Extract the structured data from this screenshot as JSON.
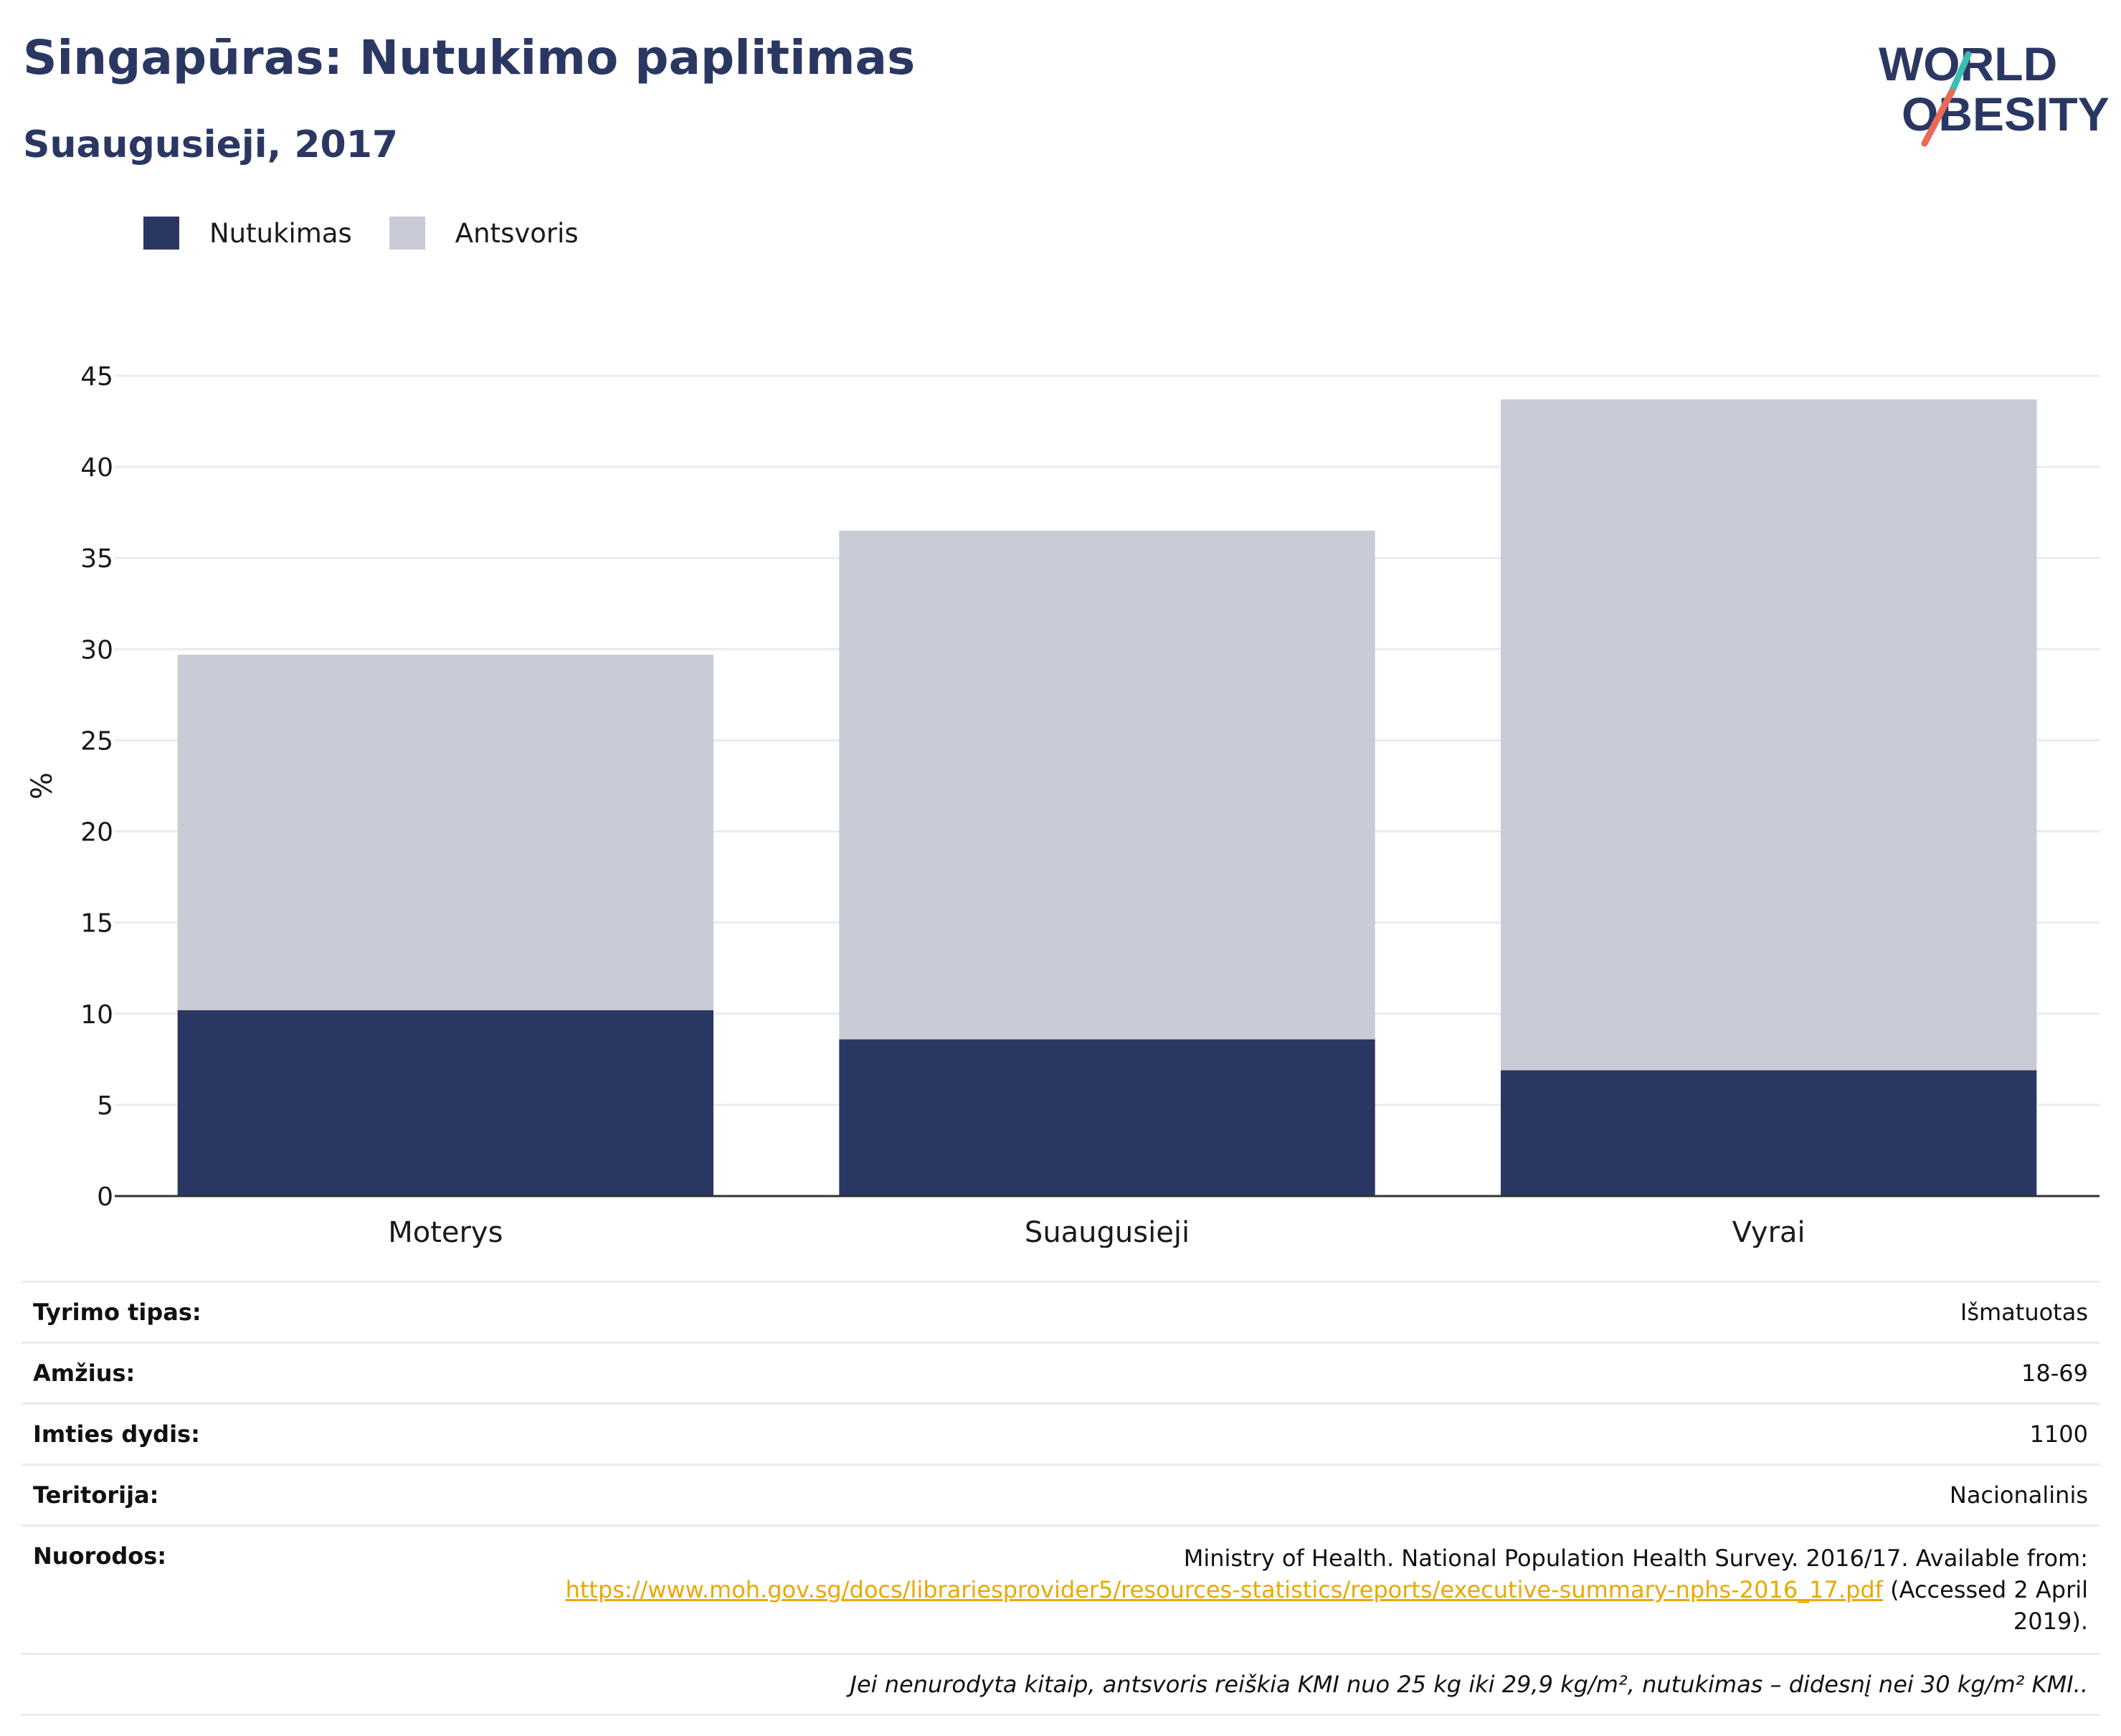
{
  "header": {
    "title": "Singapūras: Nutukimo paplitimas",
    "subtitle": "Suaugusieji, 2017",
    "logo_line1": "WORLD",
    "logo_line2": "OBESITY"
  },
  "legend": [
    {
      "label": "Nutukimas",
      "color": "#2b3763"
    },
    {
      "label": "Antsvoris",
      "color": "#c9cbd7"
    }
  ],
  "chart_data": {
    "type": "bar",
    "stacked": true,
    "categories": [
      "Moterys",
      "Suaugusieji",
      "Vyrai"
    ],
    "series": [
      {
        "name": "Nutukimas",
        "color": "#2b3763",
        "values": [
          10.2,
          8.6,
          6.9
        ]
      },
      {
        "name": "Antsvoris",
        "color": "#c9cbd7",
        "values": [
          19.5,
          27.9,
          36.8
        ]
      }
    ],
    "ylabel": "%",
    "ylim": [
      0,
      45
    ],
    "yticks": [
      0,
      5,
      10,
      15,
      20,
      25,
      30,
      35,
      40,
      45
    ],
    "grid": true,
    "legend_position": "top-left"
  },
  "info": {
    "rows": [
      {
        "label": "Tyrimo tipas:",
        "value": "Išmatuotas"
      },
      {
        "label": "Amžius:",
        "value": "18-69"
      },
      {
        "label": "Imties dydis:",
        "value": "1100"
      },
      {
        "label": "Teritorija:",
        "value": "Nacionalinis"
      }
    ],
    "references": {
      "label": "Nuorodos:",
      "text": "Ministry of Health. National Population Health Survey. 2016/17. Available from:",
      "link": "https://www.moh.gov.sg/docs/librariesprovider5/resources-statistics/reports/executive-summary-nphs-2016_17.pdf",
      "suffix": "(Accessed 2 April 2019)."
    },
    "note": "Jei nenurodyta kitaip, antsvoris reiškia KMI nuo 25 kg iki 29,9 kg/m², nutukimas – didesnį nei 30 kg/m² KMI.."
  }
}
